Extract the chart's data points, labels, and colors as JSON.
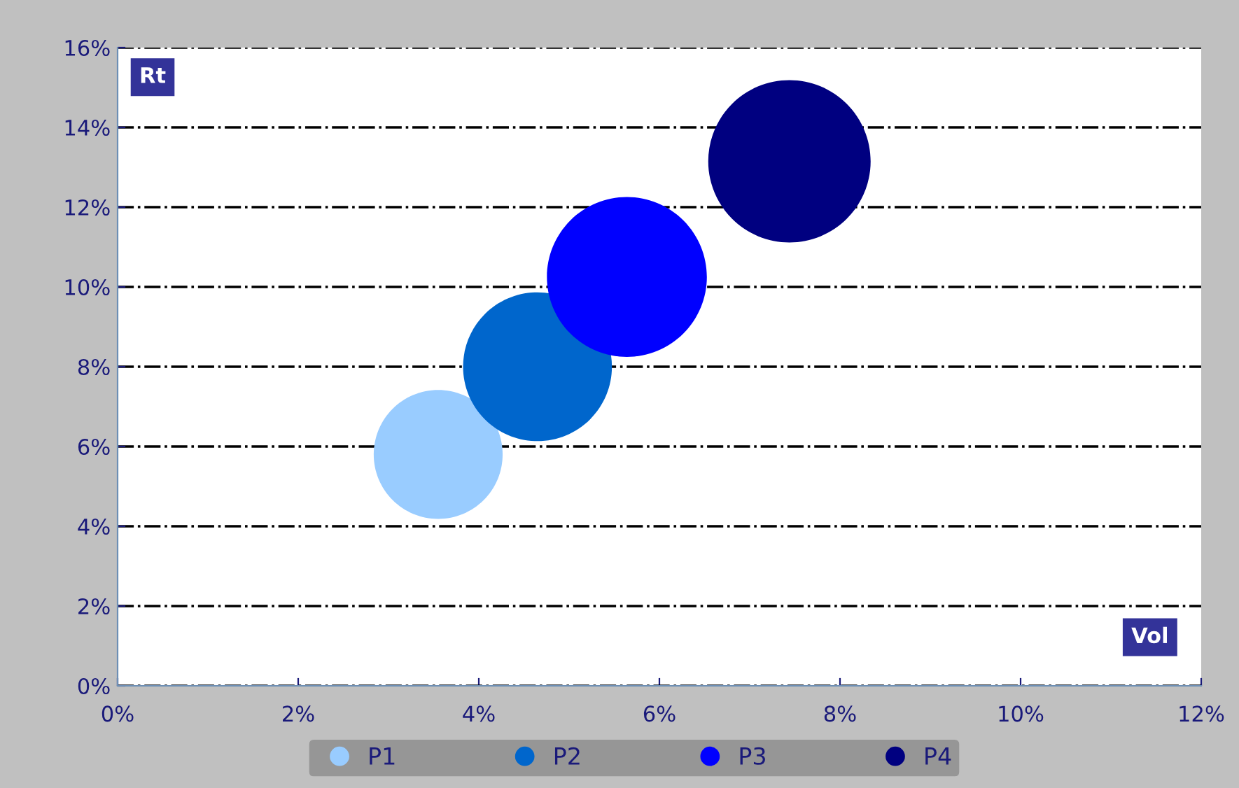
{
  "chart_data": {
    "type": "bubble",
    "xlabel": "Vol",
    "ylabel": "Rt",
    "series": [
      {
        "name": "P1",
        "color": "#99ccff",
        "x": [
          3.55
        ],
        "values": [
          5.8
        ],
        "sizes": [
          0.63
        ]
      },
      {
        "name": "P2",
        "color": "#0066cc",
        "x": [
          4.65
        ],
        "values": [
          8.0
        ],
        "sizes": [
          0.84
        ]
      },
      {
        "name": "P3",
        "color": "#0000ff",
        "x": [
          5.64
        ],
        "values": [
          10.25
        ],
        "sizes": [
          0.97
        ]
      },
      {
        "name": "P4",
        "color": "#000080",
        "x": [
          7.44
        ],
        "values": [
          13.15
        ],
        "sizes": [
          1
        ]
      }
    ],
    "xlim": [
      0,
      12
    ],
    "ylim": [
      0,
      16
    ],
    "xticks": [
      {
        "value": 0,
        "label": "0%"
      },
      {
        "value": 2,
        "label": "2%"
      },
      {
        "value": 4,
        "label": "4%"
      },
      {
        "value": 6,
        "label": "6%"
      },
      {
        "value": 8,
        "label": "8%"
      },
      {
        "value": 10,
        "label": "10%"
      },
      {
        "value": 12,
        "label": "12%"
      }
    ],
    "yticks": [
      {
        "value": 0,
        "label": "0%"
      },
      {
        "value": 2,
        "label": "2%"
      },
      {
        "value": 4,
        "label": "4%"
      },
      {
        "value": 6,
        "label": "6%"
      },
      {
        "value": 8,
        "label": "8%"
      },
      {
        "value": 10,
        "label": "10%"
      },
      {
        "value": 12,
        "label": "12%"
      },
      {
        "value": 14,
        "label": "14%"
      },
      {
        "value": 16,
        "label": "16%"
      }
    ],
    "grid": "y",
    "legend": "bottom"
  }
}
